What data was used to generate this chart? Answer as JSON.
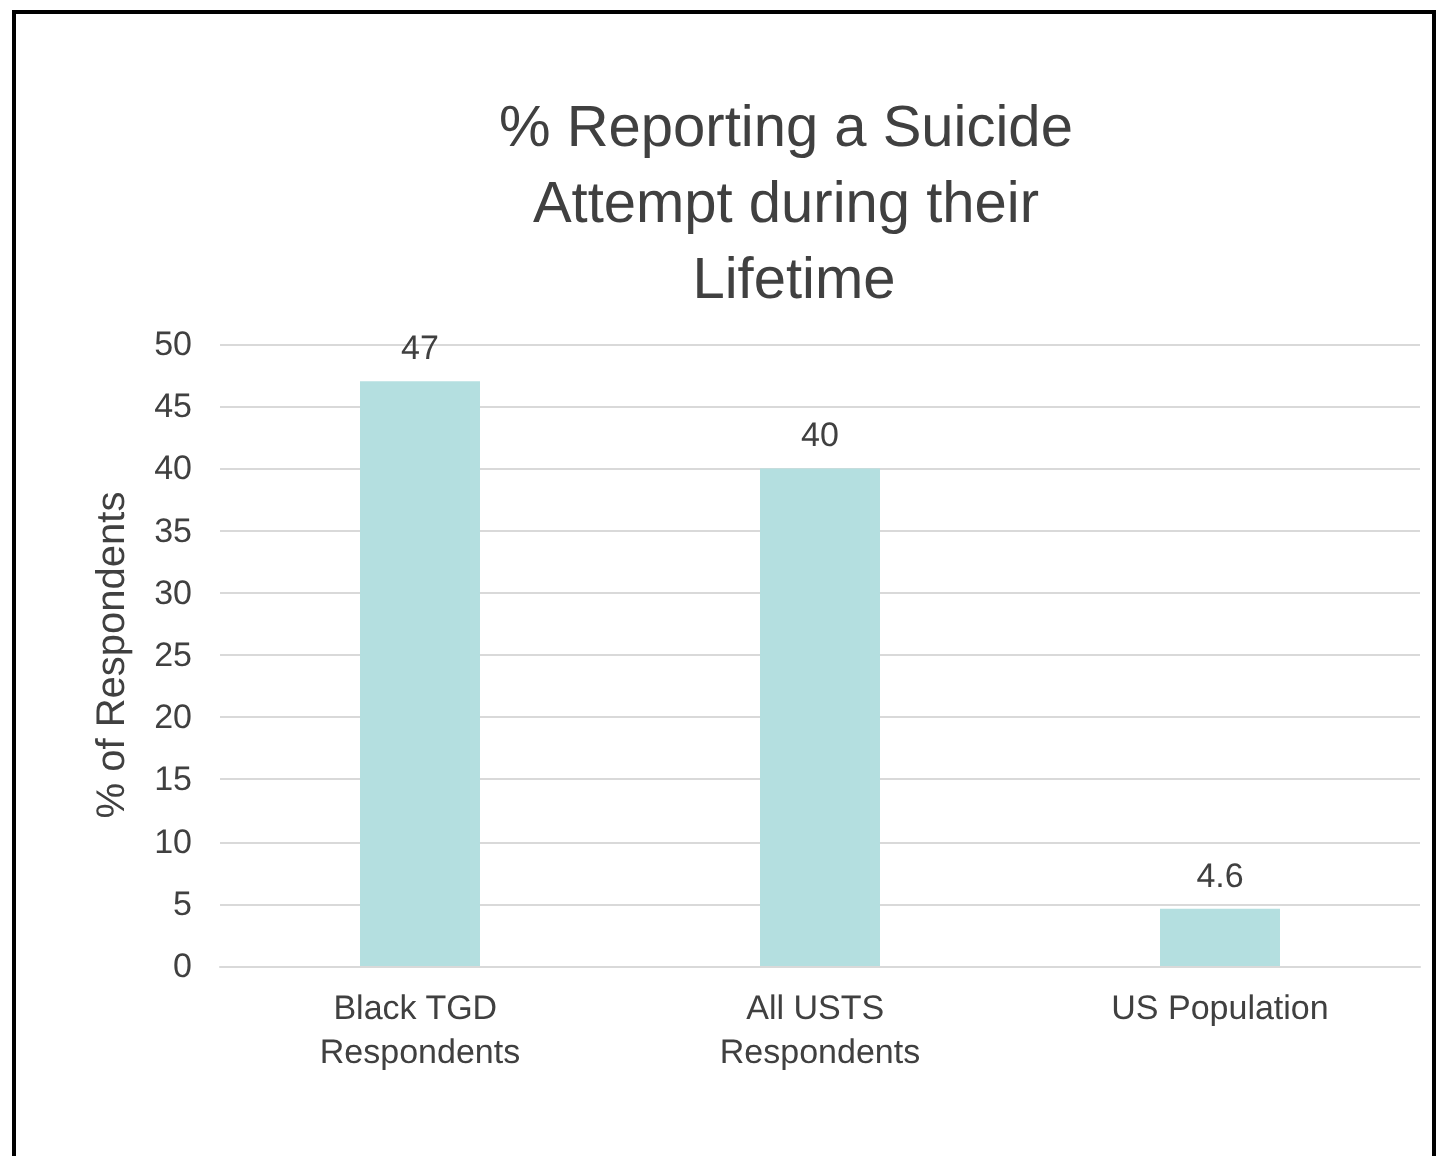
{
  "chart_data": {
    "type": "bar",
    "title": "% Reporting a Suicide Attempt during their Lifetime",
    "ylabel": "% of Respondents",
    "categories": [
      "Black TGD Respondents",
      "All USTS Respondents",
      "US Population"
    ],
    "values": [
      47,
      40,
      4.6
    ],
    "color": "#b4dfe0",
    "ylim": [
      0,
      50
    ],
    "yticks": [
      0,
      5,
      10,
      15,
      20,
      25,
      30,
      35,
      40,
      45,
      50
    ],
    "grid": "y",
    "data_labels": true
  }
}
